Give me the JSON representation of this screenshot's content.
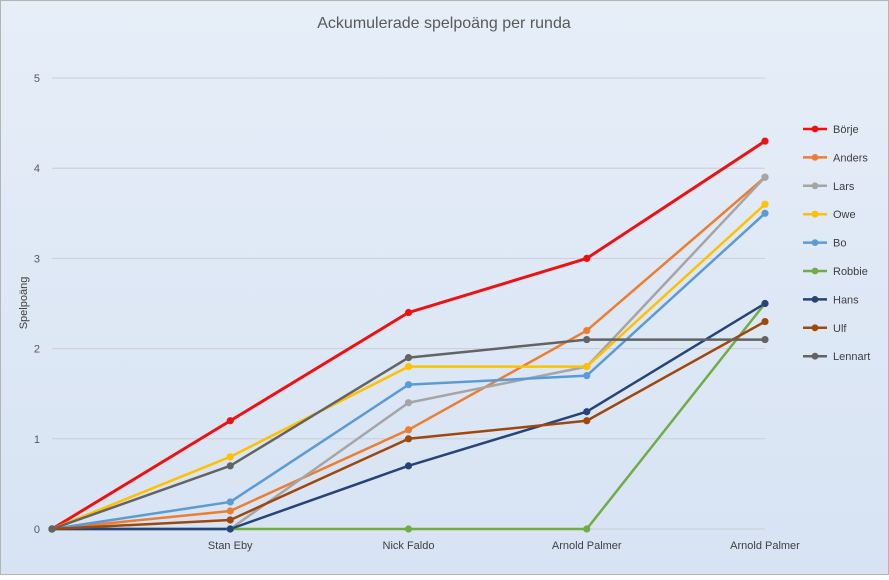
{
  "chart_data": {
    "type": "line",
    "title": "Ackumulerade spelpoäng per runda",
    "xlabel": "",
    "ylabel": "Spelpoäng",
    "ylim": [
      0,
      5
    ],
    "yticks": [
      "0",
      "1",
      "2",
      "3",
      "4",
      "5"
    ],
    "grid": true,
    "legend_position": "right",
    "categories": [
      "",
      "Stan Eby",
      "Nick Faldo",
      "Arnold Palmer",
      "Arnold Palmer"
    ],
    "series": [
      {
        "name": "Börje",
        "color": "#ee1111",
        "values": [
          0,
          1.2,
          2.4,
          3.0,
          4.3
        ]
      },
      {
        "name": "Anders",
        "color": "#ed7d31",
        "values": [
          0,
          0.2,
          1.1,
          2.2,
          3.9
        ]
      },
      {
        "name": "Lars",
        "color": "#a5a5a5",
        "values": [
          0,
          0,
          1.4,
          1.8,
          3.9
        ]
      },
      {
        "name": "Owe",
        "color": "#ffc000",
        "values": [
          0,
          0.8,
          1.8,
          1.8,
          3.6
        ]
      },
      {
        "name": "Bo",
        "color": "#5b9bd5",
        "values": [
          0,
          0.3,
          1.6,
          1.7,
          3.5
        ]
      },
      {
        "name": "Robbie",
        "color": "#70ad47",
        "values": [
          0,
          0,
          0,
          0,
          2.5
        ]
      },
      {
        "name": "Hans",
        "color": "#264478",
        "values": [
          0,
          0,
          0.7,
          1.3,
          2.5
        ]
      },
      {
        "name": "Ulf",
        "color": "#9e480e",
        "values": [
          0,
          0.1,
          1.0,
          1.2,
          2.3
        ]
      },
      {
        "name": "Lennart",
        "color": "#636363",
        "values": [
          0,
          0.7,
          1.9,
          2.1,
          2.1
        ]
      }
    ]
  }
}
